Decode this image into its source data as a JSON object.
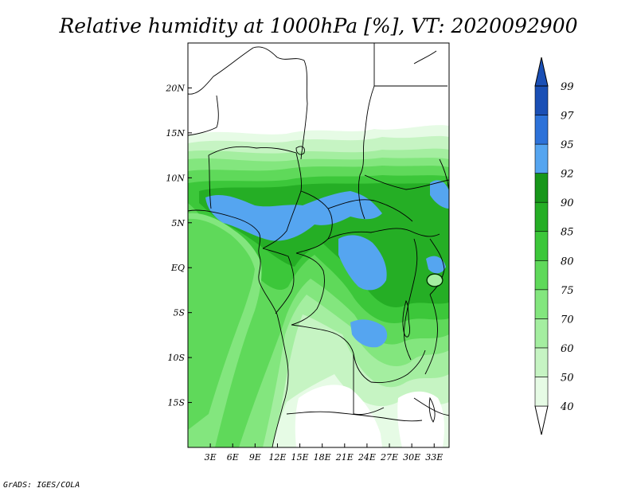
{
  "title": "Relative humidity at 1000hPa [%], VT: 2020092900",
  "credit": "GrADS: IGES/COLA",
  "map": {
    "projection": "lat-lon",
    "lon_range": [
      0,
      35
    ],
    "lat_range": [
      -20,
      25
    ],
    "lat_ticks": [
      {
        "value": 20,
        "label": "20N"
      },
      {
        "value": 15,
        "label": "15N"
      },
      {
        "value": 10,
        "label": "10N"
      },
      {
        "value": 5,
        "label": "5N"
      },
      {
        "value": 0,
        "label": "EQ"
      },
      {
        "value": -5,
        "label": "5S"
      },
      {
        "value": -10,
        "label": "10S"
      },
      {
        "value": -15,
        "label": "15S"
      }
    ],
    "lon_ticks": [
      {
        "value": 3,
        "label": "3E"
      },
      {
        "value": 6,
        "label": "6E"
      },
      {
        "value": 9,
        "label": "9E"
      },
      {
        "value": 12,
        "label": "12E"
      },
      {
        "value": 15,
        "label": "15E"
      },
      {
        "value": 18,
        "label": "18E"
      },
      {
        "value": 21,
        "label": "21E"
      },
      {
        "value": 24,
        "label": "24E"
      },
      {
        "value": 27,
        "label": "27E"
      },
      {
        "value": 30,
        "label": "30E"
      },
      {
        "value": 33,
        "label": "33E"
      }
    ]
  },
  "colorbar": {
    "levels": [
      "40",
      "50",
      "60",
      "70",
      "75",
      "80",
      "85",
      "90",
      "92",
      "95",
      "97",
      "99"
    ],
    "colors": [
      "#ffffff",
      "#e6fbe5",
      "#c6f4c3",
      "#a4eea0",
      "#83e67e",
      "#5fd95a",
      "#3cc73a",
      "#25ae25",
      "#17961a",
      "#55a5f0",
      "#2d72d9",
      "#1a4fb5"
    ]
  }
}
